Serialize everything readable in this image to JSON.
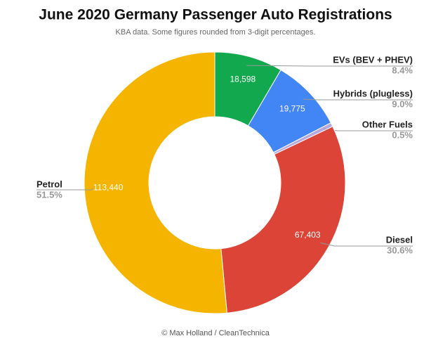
{
  "chart_data": {
    "type": "donut",
    "title": "June 2020 Germany Passenger Auto Registrations",
    "subtitle": "KBA data. Some figures rounded from 3-digit percentages.",
    "footer": "© Max Holland / CleanTechnica",
    "categories": [
      "EVs (BEV + PHEV)",
      "Hybrids (plugless)",
      "Other Fuels",
      "Diesel",
      "Petrol"
    ],
    "values": [
      18598,
      19775,
      1100,
      67403,
      113440
    ],
    "value_labels": [
      "18,598",
      "19,775",
      null,
      "67,403",
      "113,440"
    ],
    "percent_labels": [
      "8.4%",
      "9.0%",
      "0.5%",
      "30.6%",
      "51.5%"
    ],
    "colors": [
      "#12a84e",
      "#4285f4",
      "#b7a8e0",
      "#db4437",
      "#f4b400"
    ]
  }
}
